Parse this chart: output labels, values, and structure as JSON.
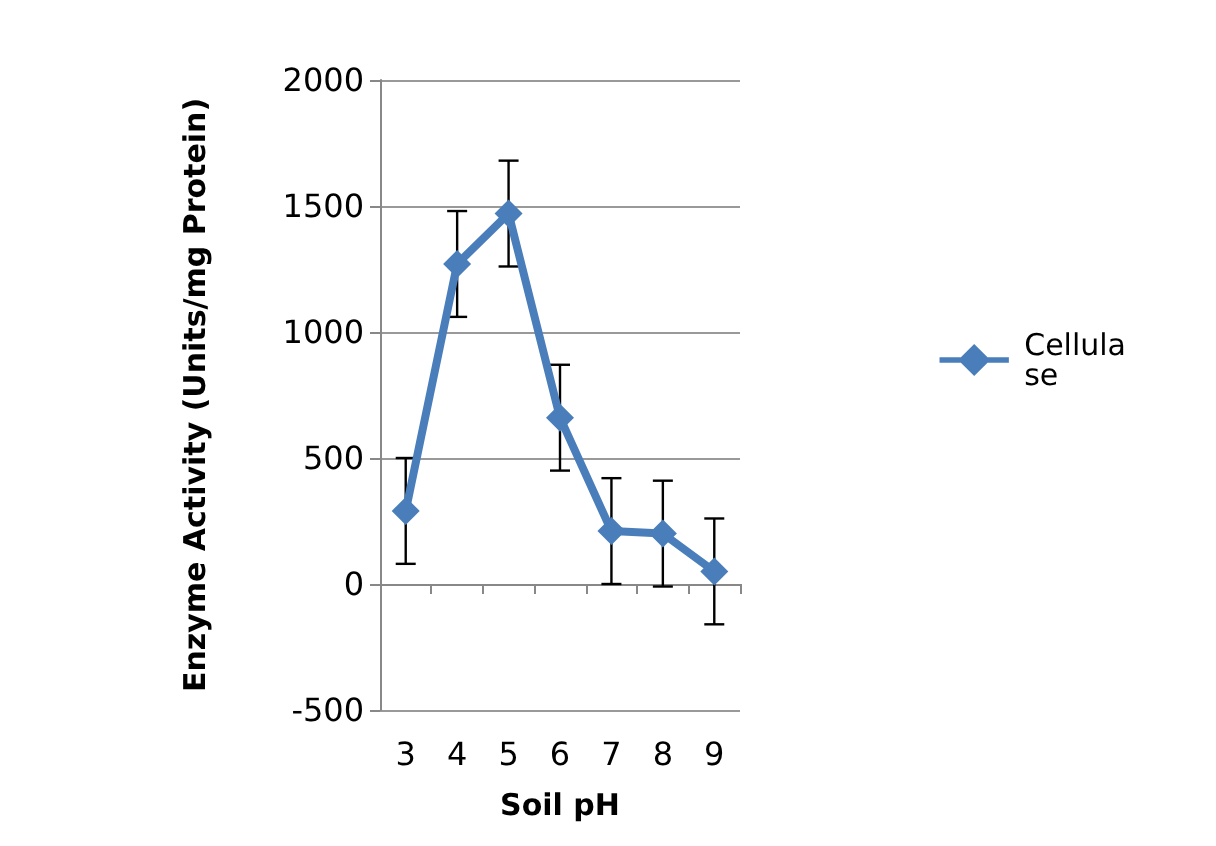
{
  "chart_data": {
    "type": "line",
    "xlabel": "Soil pH",
    "ylabel": "Enzyme Activity (Units/mg Protein)",
    "categories": [
      "3",
      "4",
      "5",
      "6",
      "7",
      "8",
      "9"
    ],
    "series": [
      {
        "name": "Cellulase",
        "color": "#4a7ebb",
        "values": [
          290,
          1270,
          1470,
          660,
          210,
          200,
          50
        ],
        "errors": [
          210,
          210,
          210,
          210,
          210,
          210,
          210
        ]
      }
    ],
    "ylim": [
      -500,
      2000
    ],
    "yticks": [
      -500,
      0,
      500,
      1000,
      1500,
      2000
    ],
    "grid": "y",
    "legend": "right",
    "marker": "diamond",
    "line_style": "solid"
  }
}
